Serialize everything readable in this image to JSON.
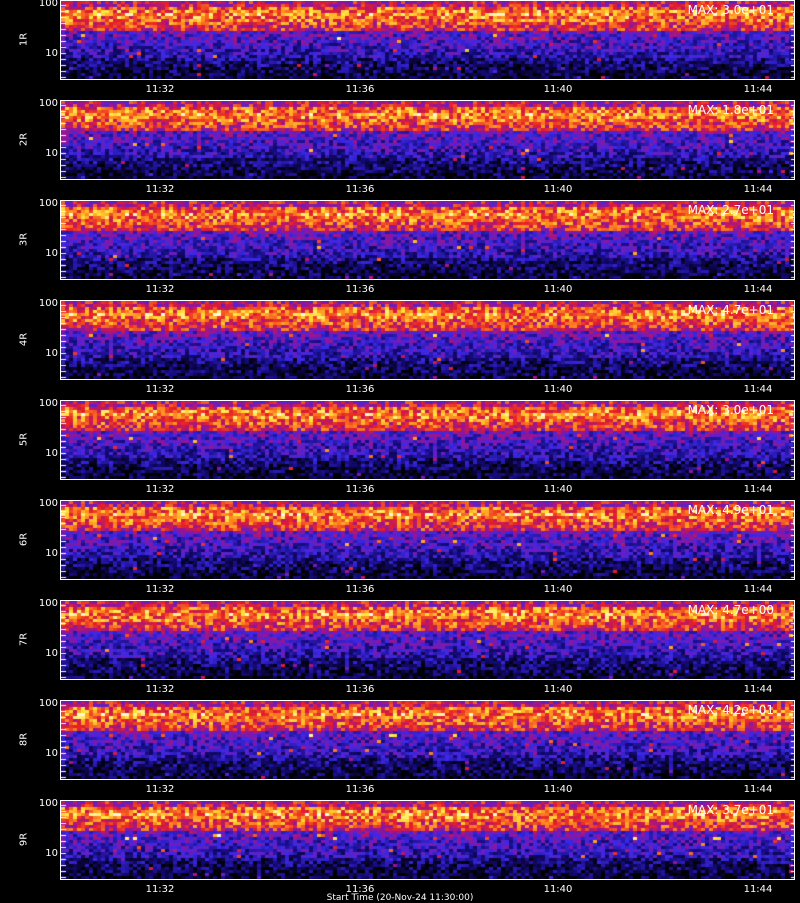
{
  "chart_data": {
    "type": "heatmap",
    "colormap": "black-blue-red-yellow-white",
    "x_ticks": [
      "11:32",
      "11:36",
      "11:40",
      "11:44"
    ],
    "x_title": "Start Time (20-Nov-24 11:30:00)",
    "y_ticks": [
      "100",
      "10"
    ],
    "y_scale": "log",
    "panels": [
      {
        "label": "1R",
        "max": "MAX: 3.0e+01"
      },
      {
        "label": "2R",
        "max": "MAX: 1.8e+01"
      },
      {
        "label": "3R",
        "max": "MAX: 2.7e+01"
      },
      {
        "label": "4R",
        "max": "MAX: 4.7e+01"
      },
      {
        "label": "5R",
        "max": "MAX: 3.0e+01"
      },
      {
        "label": "6R",
        "max": "MAX: 4.9e+01"
      },
      {
        "label": "7R",
        "max": "MAX: 4.7e+00"
      },
      {
        "label": "8R",
        "max": "MAX: 4.2e+01"
      },
      {
        "label": "9R",
        "max": "MAX: 3.7e+01"
      }
    ]
  }
}
